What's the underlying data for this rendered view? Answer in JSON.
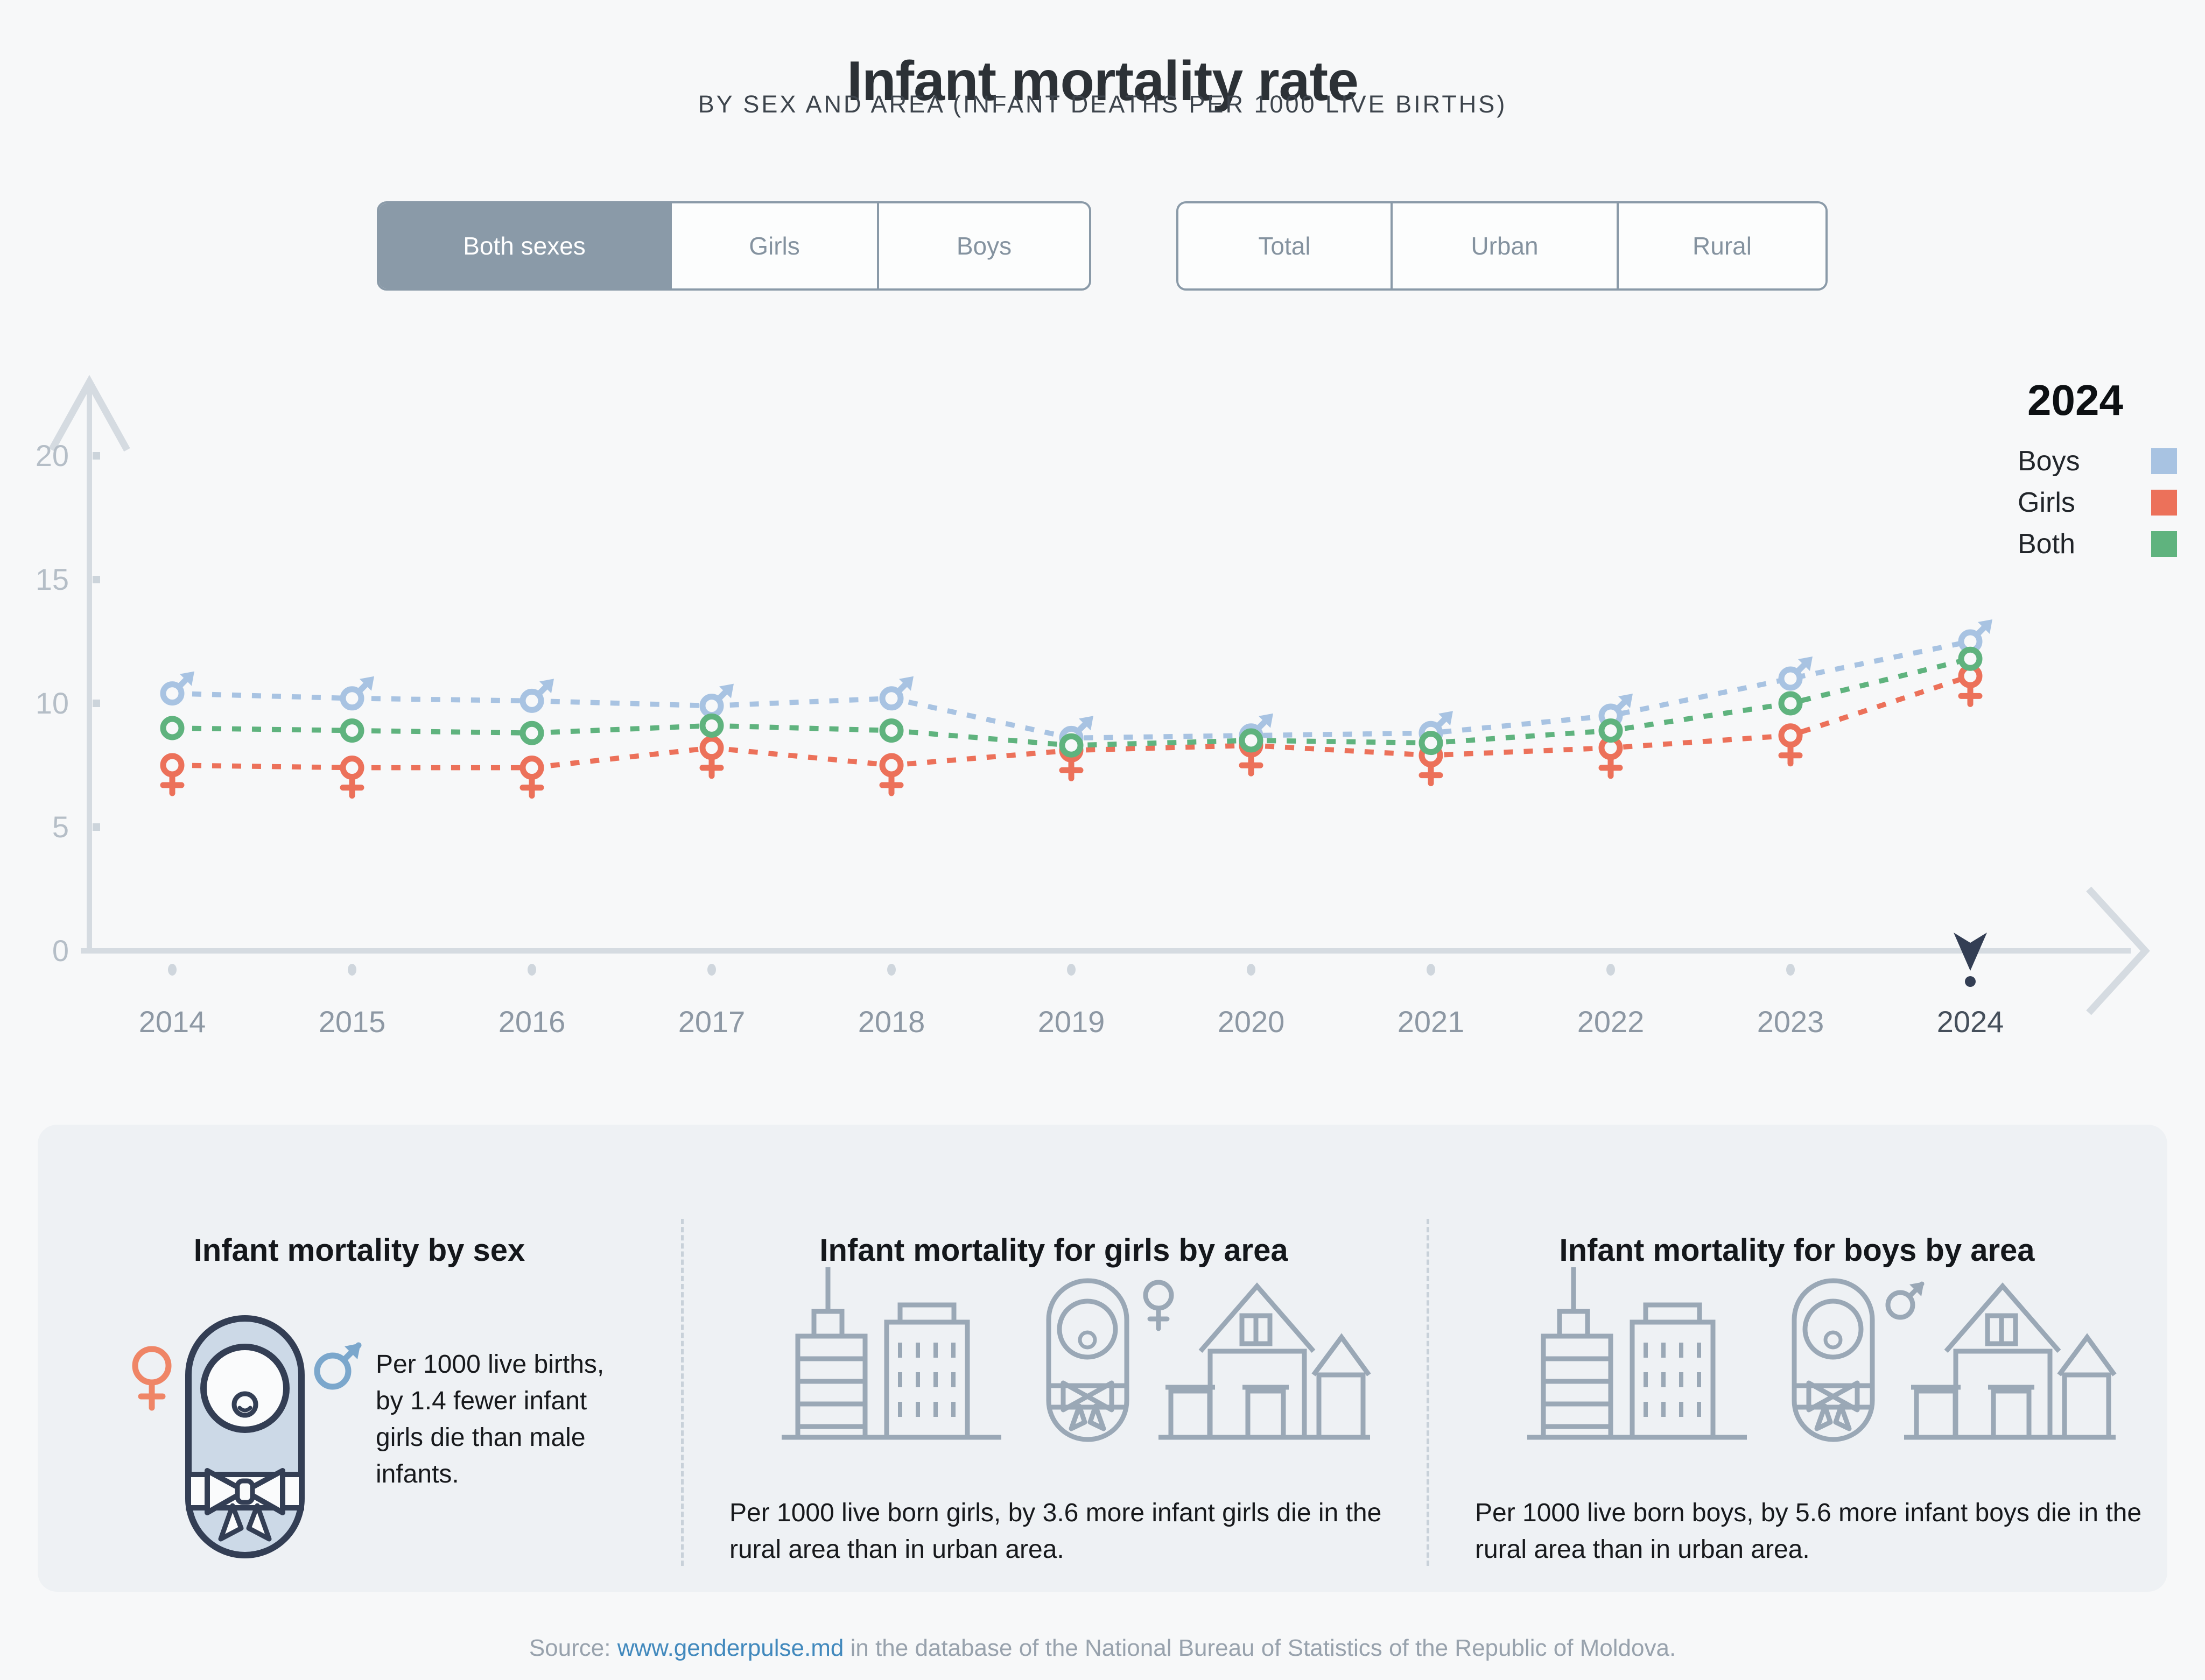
{
  "header": {
    "title": "Infant mortality rate",
    "subtitle": "BY SEX AND AREA (INFANT DEATHS PER 1000 LIVE BIRTHS)"
  },
  "filters": {
    "sex": {
      "options": [
        "Both sexes",
        "Girls",
        "Boys"
      ],
      "selected": "Both sexes"
    },
    "area": {
      "options": [
        "Total",
        "Urban",
        "Rural"
      ],
      "selected": null
    }
  },
  "legend": {
    "year": "2024",
    "entries": [
      "Boys",
      "Girls",
      "Both"
    ]
  },
  "chart_data": {
    "type": "line",
    "x": [
      "2014",
      "2015",
      "2016",
      "2017",
      "2018",
      "2019",
      "2020",
      "2021",
      "2022",
      "2023",
      "2024"
    ],
    "series": [
      {
        "name": "Boys",
        "marker": "male",
        "color": "#a8c3e2",
        "values": [
          10.4,
          10.2,
          10.1,
          9.9,
          10.2,
          8.6,
          8.7,
          8.8,
          9.5,
          11.0,
          12.5
        ]
      },
      {
        "name": "Girls",
        "marker": "female",
        "color": "#ec715a",
        "values": [
          7.5,
          7.4,
          7.4,
          8.2,
          7.5,
          8.1,
          8.3,
          7.9,
          8.2,
          8.7,
          11.1
        ]
      },
      {
        "name": "Both",
        "marker": "circle",
        "color": "#5fb37e",
        "values": [
          9.0,
          8.9,
          8.8,
          9.1,
          8.9,
          8.3,
          8.5,
          8.4,
          8.9,
          10.0,
          11.8
        ]
      }
    ],
    "ylabel": "",
    "xlabel": "",
    "ylim": [
      0,
      20
    ],
    "yticks": [
      0,
      5,
      10,
      15,
      20
    ],
    "selected_x": "2024",
    "grid": false,
    "legend_position": "top-right",
    "line_style": "dashed"
  },
  "cards": [
    {
      "title": "Infant mortality by sex",
      "icons": [
        "female-symbol",
        "swaddled-baby",
        "male-symbol"
      ],
      "text": "Per 1000 live births, by 1.4 fewer infant girls die than male infants."
    },
    {
      "title": "Infant mortality for girls by area",
      "icons": [
        "city-buildings",
        "swaddled-baby",
        "female-symbol",
        "rural-house"
      ],
      "text": "Per 1000 live born girls, by 3.6 more infant girls die in the rural area than in urban area."
    },
    {
      "title": "Infant mortality for boys by area",
      "icons": [
        "city-buildings",
        "swaddled-baby",
        "male-symbol",
        "rural-house"
      ],
      "text": "Per 1000 live born boys, by 5.6 more infant boys die in the rural area than in urban area."
    }
  ],
  "footer": {
    "source_prefix": "Source: ",
    "link_text": "www.genderpulse.md",
    "source_suffix": " in the database of the National Bureau of Statistics of the Republic of Moldova."
  },
  "colors": {
    "boys": "#a8c3e2",
    "girls": "#ec715a",
    "both": "#5fb37e",
    "selected_filter_bg": "#8a9aa8",
    "axis": "#d5dbe1",
    "year_pointer": "#333e54",
    "link": "#4289bd",
    "card_bg": "#eef1f4"
  }
}
